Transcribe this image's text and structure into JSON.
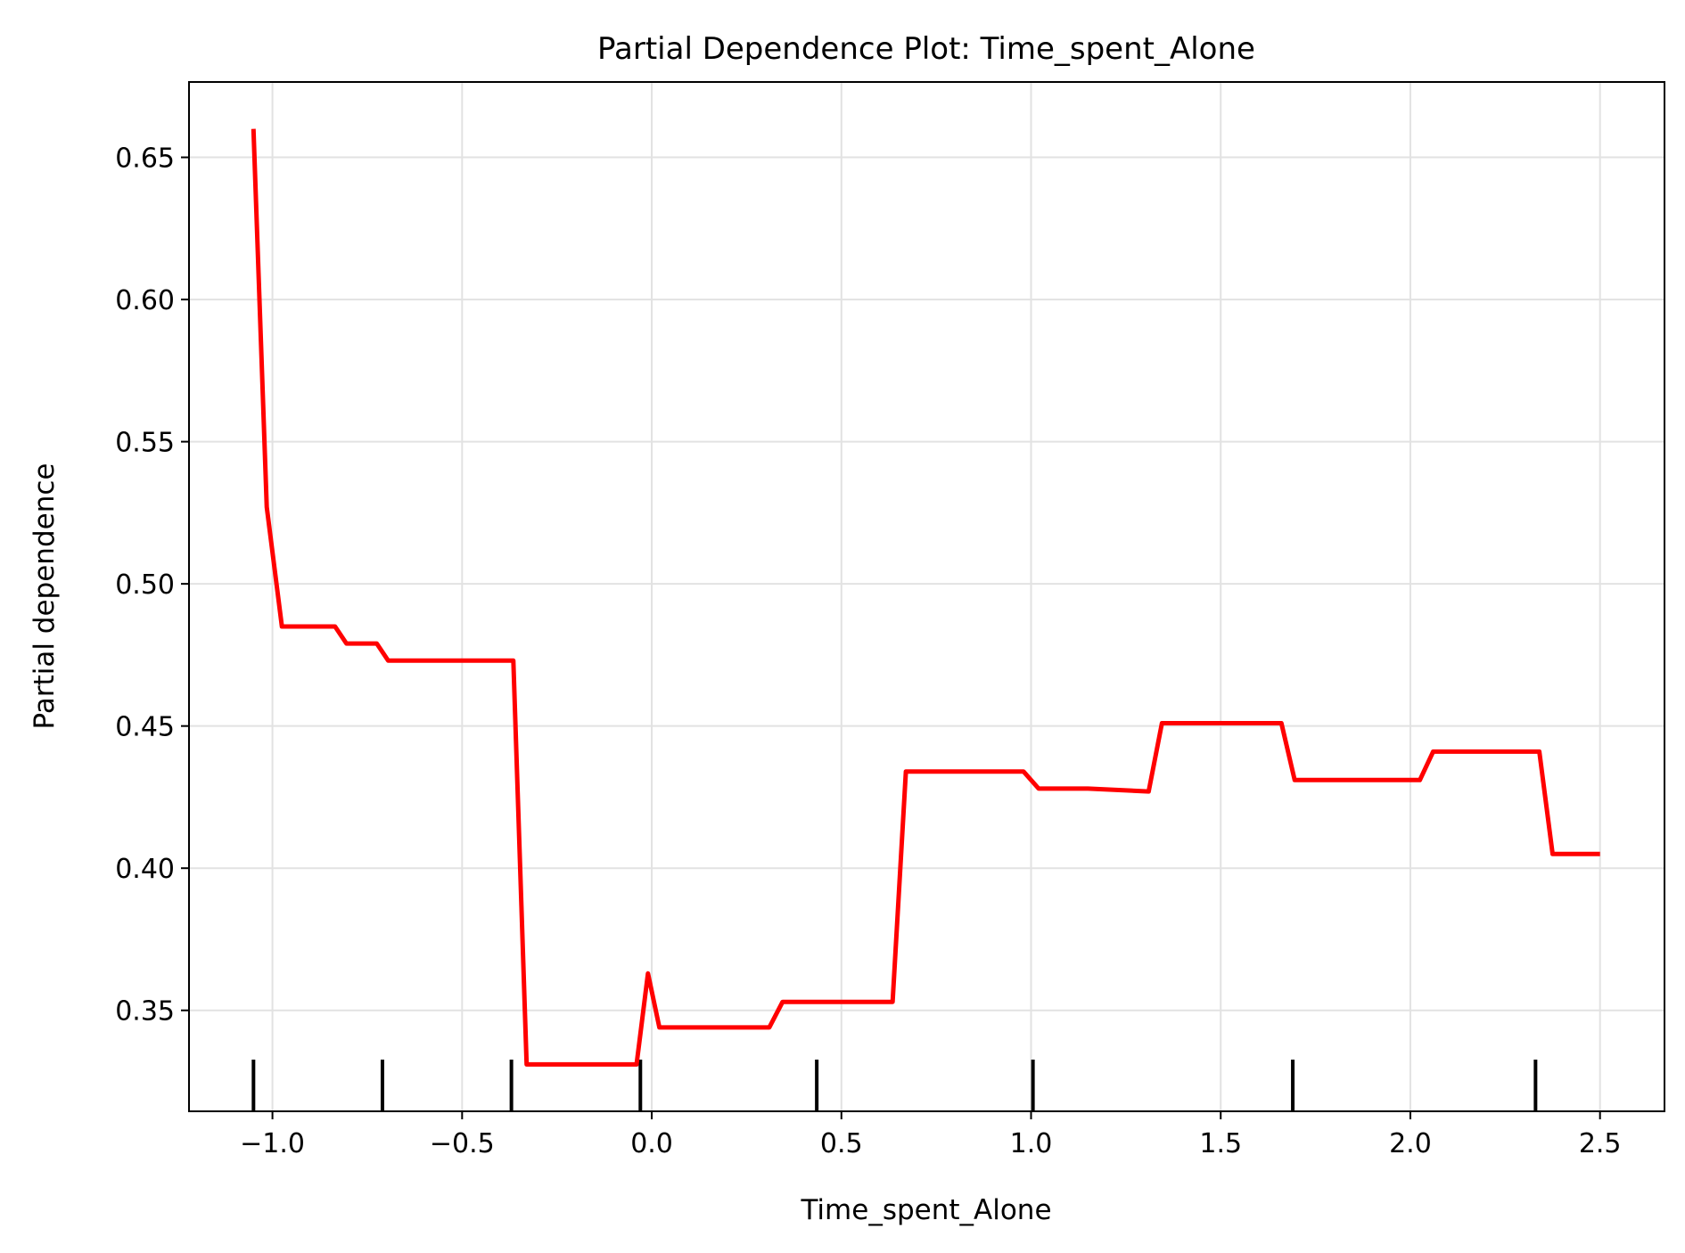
{
  "chart_data": {
    "type": "line",
    "title": "Partial Dependence Plot: Time_spent_Alone",
    "xlabel": "Time_spent_Alone",
    "ylabel": "Partial dependence",
    "xlim": [
      -1.22,
      2.67
    ],
    "ylim": [
      0.3145,
      0.6765
    ],
    "x_ticks": [
      -1.0,
      -0.5,
      0.0,
      0.5,
      1.0,
      1.5,
      2.0,
      2.5
    ],
    "x_tick_labels": [
      "−1.0",
      "−0.5",
      "0.0",
      "0.5",
      "1.0",
      "1.5",
      "2.0",
      "2.5"
    ],
    "y_ticks": [
      0.35,
      0.4,
      0.45,
      0.5,
      0.55,
      0.6,
      0.65
    ],
    "y_tick_labels": [
      "0.35",
      "0.40",
      "0.45",
      "0.50",
      "0.55",
      "0.60",
      "0.65"
    ],
    "grid": true,
    "line_color": "#ff0000",
    "series": [
      {
        "x": [
          -1.05,
          -1.015,
          -0.975,
          -0.835,
          -0.805,
          -0.725,
          -0.695,
          -0.365,
          -0.33,
          -0.04,
          -0.01,
          0.02,
          0.31,
          0.345,
          0.635,
          0.67,
          0.98,
          1.02,
          1.15,
          1.31,
          1.345,
          1.66,
          1.695,
          2.025,
          2.06,
          2.34,
          2.375,
          2.5
        ],
        "y": [
          0.66,
          0.527,
          0.485,
          0.485,
          0.479,
          0.479,
          0.473,
          0.473,
          0.331,
          0.331,
          0.363,
          0.344,
          0.344,
          0.353,
          0.353,
          0.434,
          0.434,
          0.428,
          0.428,
          0.427,
          0.451,
          0.451,
          0.431,
          0.431,
          0.441,
          0.441,
          0.405,
          0.405
        ]
      }
    ],
    "rug_x": [
      -1.05,
      -0.71,
      -0.37,
      -0.03,
      0.435,
      1.005,
      1.69,
      2.33
    ]
  }
}
